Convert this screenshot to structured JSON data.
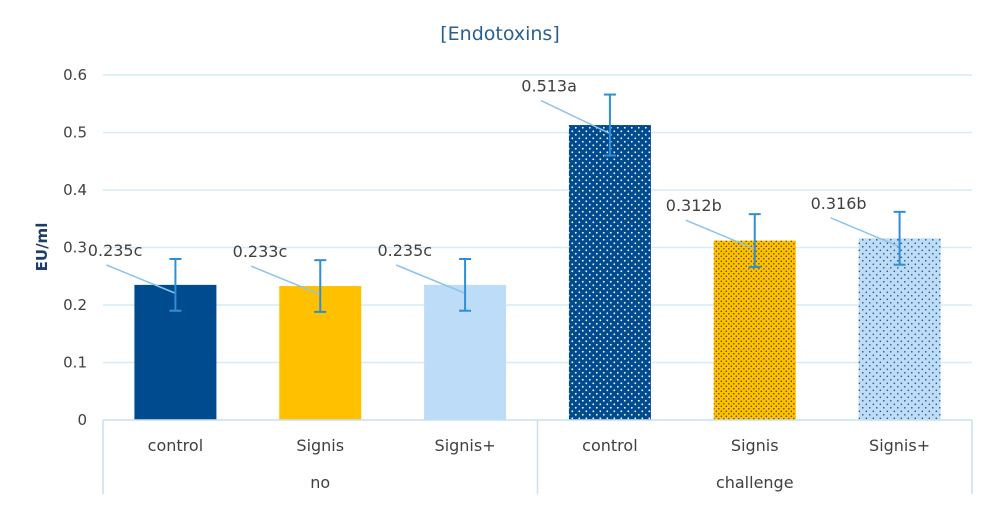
{
  "chart_data": {
    "type": "bar",
    "title": "[Endotoxins]",
    "ylabel": "EU/ml",
    "xlabel": "",
    "ylim": [
      0,
      0.6
    ],
    "yticks": [
      "0",
      "0.1",
      "0.2",
      "0.3",
      "0.4",
      "0.5",
      "0.6"
    ],
    "grid": true,
    "groups": [
      {
        "label": "no",
        "bars": [
          {
            "category": "control",
            "value": 0.235,
            "error": 0.045,
            "data_label": "0.235c",
            "color": "#004b8d",
            "pattern": "solid"
          },
          {
            "category": "Signis",
            "value": 0.233,
            "error": 0.045,
            "data_label": "0.233c",
            "color": "#ffc000",
            "pattern": "solid"
          },
          {
            "category": "Signis+",
            "value": 0.235,
            "error": 0.045,
            "data_label": "0.235c",
            "color": "#bddcf7",
            "pattern": "solid"
          }
        ]
      },
      {
        "label": "challenge",
        "bars": [
          {
            "category": "control",
            "value": 0.513,
            "error": 0.053,
            "data_label": "0.513a",
            "color": "#004b8d",
            "pattern": "dotted"
          },
          {
            "category": "Signis",
            "value": 0.312,
            "error": 0.046,
            "data_label": "0.312b",
            "color": "#ffc000",
            "pattern": "dotted"
          },
          {
            "category": "Signis+",
            "value": 0.316,
            "error": 0.046,
            "data_label": "0.316b",
            "color": "#bddcf7",
            "pattern": "dotted"
          }
        ]
      }
    ],
    "colors": {
      "error_bar": "#2e8fd8",
      "grid": "#d6ebf7",
      "axis": "#c9dff0"
    }
  }
}
